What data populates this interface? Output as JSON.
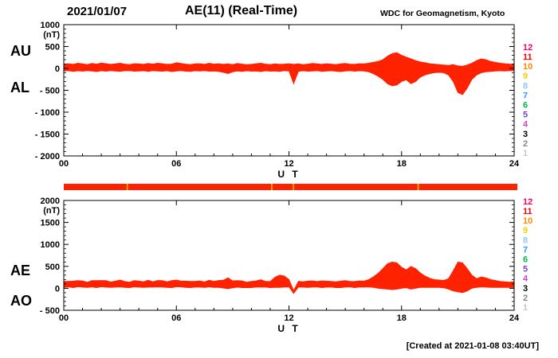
{
  "header": {
    "date": "2021/01/07",
    "title": "AE(11) (Real-Time)",
    "source": "WDC for Geomagnetism, Kyoto"
  },
  "footer": {
    "created": "[Created at 2021-01-08 03:40UT]"
  },
  "panels": [
    {
      "left_labels": [
        "AU",
        "AL"
      ]
    },
    {
      "left_labels": [
        "AE",
        "AO"
      ]
    }
  ],
  "legend": {
    "values": [
      "12",
      "11",
      "10",
      "9",
      "8",
      "7",
      "6",
      "5",
      "4",
      "3",
      "2",
      "1"
    ],
    "colors": [
      "#ff0066",
      "#ff0000",
      "#ff8800",
      "#ffcc00",
      "#88ccee",
      "#3399ff",
      "#00bb44",
      "#7744cc",
      "#cc44cc",
      "#000000",
      "#888888",
      "#c8c8c8"
    ]
  },
  "station_bar": {
    "color": "#ff2200",
    "tick_color": "#ffbb00",
    "tick_positions": [
      3.35,
      11.05,
      12.2,
      18.85
    ]
  },
  "chart_data": [
    {
      "type": "area",
      "title": "AE(11) (Real-Time) upper panel: AU and AL indices",
      "xlabel": "U T",
      "ylabel": "(nT)",
      "xlim": [
        0,
        24
      ],
      "ylim": [
        -2000,
        1000
      ],
      "yticks": [
        1000,
        500,
        0,
        -500,
        -1000,
        -1500,
        -2000
      ],
      "ytick_labels": [
        "1000",
        "500",
        "0",
        "- 500",
        "- 1000",
        "- 1500",
        "- 2000"
      ],
      "xticks": [
        0,
        6,
        12,
        18,
        24
      ],
      "xtick_labels": [
        "00",
        "06",
        "12",
        "18",
        "24"
      ],
      "x_minor_step": 1,
      "x_start": 0,
      "x_step_hours": 0.25,
      "fill_color": "#ff2200",
      "series": [
        {
          "name": "AU",
          "values": [
            100,
            110,
            95,
            120,
            105,
            90,
            115,
            100,
            125,
            110,
            95,
            105,
            120,
            100,
            90,
            110,
            105,
            95,
            115,
            100,
            120,
            110,
            95,
            100,
            130,
            115,
            100,
            90,
            105,
            110,
            95,
            120,
            100,
            110,
            95,
            105,
            90,
            115,
            100,
            85,
            95,
            110,
            120,
            100,
            90,
            105,
            95,
            100,
            110,
            95,
            105,
            90,
            100,
            115,
            105,
            95,
            110,
            100,
            90,
            105,
            115,
            100,
            95,
            110,
            105,
            120,
            140,
            160,
            200,
            280,
            340,
            360,
            300,
            260,
            220,
            180,
            150,
            130,
            110,
            100,
            90,
            80,
            70,
            90,
            60,
            50,
            80,
            120,
            180,
            220,
            200,
            160,
            140,
            120,
            110,
            100,
            95
          ]
        },
        {
          "name": "AL",
          "values": [
            -60,
            -50,
            -70,
            -55,
            -65,
            -50,
            -60,
            -75,
            -55,
            -65,
            -50,
            -60,
            -70,
            -55,
            -50,
            -65,
            -60,
            -55,
            -70,
            -50,
            -60,
            -65,
            -55,
            -75,
            -60,
            -50,
            -65,
            -70,
            -55,
            -60,
            -50,
            -65,
            -60,
            -70,
            -90,
            -120,
            -80,
            -60,
            -70,
            -55,
            -65,
            -60,
            -75,
            -55,
            -65,
            -60,
            -70,
            -50,
            -60,
            -350,
            -70,
            -55,
            -65,
            -60,
            -50,
            -70,
            -60,
            -55,
            -65,
            -75,
            -60,
            -50,
            -65,
            -55,
            -60,
            -80,
            -120,
            -180,
            -250,
            -350,
            -400,
            -380,
            -300,
            -260,
            -350,
            -300,
            -200,
            -150,
            -120,
            -100,
            -90,
            -100,
            -150,
            -300,
            -550,
            -600,
            -450,
            -250,
            -150,
            -100,
            -80,
            -70,
            -60,
            -55,
            -60,
            -50,
            -55
          ]
        }
      ]
    },
    {
      "type": "area",
      "title": "AE(11) (Real-Time) lower panel: AE and AO indices",
      "xlabel": "U T",
      "ylabel": "(nT)",
      "xlim": [
        0,
        24
      ],
      "ylim": [
        -500,
        2000
      ],
      "yticks": [
        2000,
        1500,
        1000,
        500,
        0,
        -500
      ],
      "ytick_labels": [
        "2000",
        "1500",
        "1000",
        "500",
        "0",
        "- 500"
      ],
      "xticks": [
        0,
        6,
        12,
        18,
        24
      ],
      "xtick_labels": [
        "00",
        "06",
        "12",
        "18",
        "24"
      ],
      "x_minor_step": 1,
      "x_start": 0,
      "x_step_hours": 0.25,
      "fill_color": "#ff2200",
      "series": [
        {
          "name": "AE",
          "values": [
            160,
            160,
            165,
            175,
            170,
            140,
            175,
            175,
            180,
            175,
            145,
            165,
            190,
            155,
            140,
            175,
            165,
            150,
            185,
            150,
            180,
            175,
            150,
            175,
            190,
            165,
            165,
            160,
            160,
            170,
            145,
            185,
            160,
            180,
            185,
            240,
            170,
            175,
            170,
            140,
            160,
            170,
            195,
            155,
            155,
            250,
            300,
            280,
            200,
            -50,
            160,
            150,
            165,
            170,
            155,
            170,
            165,
            160,
            150,
            165,
            175,
            160,
            155,
            170,
            165,
            200,
            260,
            340,
            450,
            560,
            600,
            580,
            480,
            420,
            500,
            450,
            350,
            280,
            230,
            200,
            190,
            180,
            220,
            400,
            600,
            580,
            450,
            300,
            220,
            260,
            240,
            200,
            180,
            160,
            150,
            140,
            150
          ]
        },
        {
          "name": "AO",
          "values": [
            20,
            30,
            15,
            35,
            25,
            20,
            30,
            15,
            35,
            25,
            20,
            25,
            30,
            20,
            15,
            30,
            25,
            20,
            25,
            25,
            30,
            25,
            20,
            15,
            35,
            30,
            20,
            15,
            25,
            25,
            20,
            30,
            20,
            20,
            5,
            -10,
            10,
            25,
            15,
            15,
            15,
            25,
            25,
            25,
            15,
            20,
            20,
            25,
            30,
            -120,
            25,
            25,
            20,
            25,
            30,
            15,
            25,
            25,
            15,
            15,
            25,
            30,
            15,
            25,
            25,
            30,
            20,
            0,
            -10,
            -20,
            -30,
            -20,
            0,
            10,
            -20,
            0,
            20,
            20,
            20,
            20,
            20,
            10,
            -20,
            -60,
            -80,
            -100,
            -60,
            0,
            20,
            30,
            25,
            20,
            20,
            20,
            20,
            20,
            20
          ]
        }
      ]
    }
  ]
}
